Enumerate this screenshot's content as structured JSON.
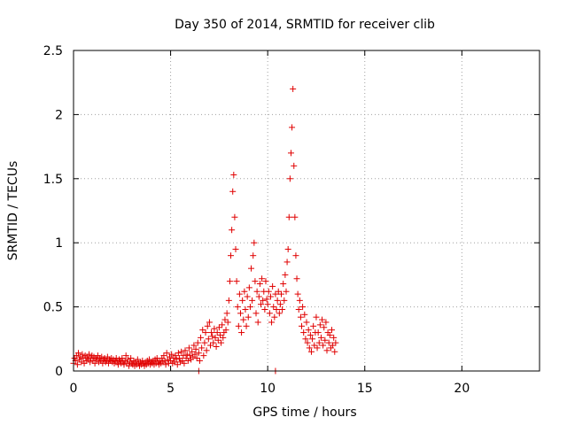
{
  "chart_data": {
    "type": "scatter",
    "title": "Day 350 of 2014, SRMTID for receiver clib",
    "xlabel": "GPS time / hours",
    "ylabel": "SRMTID / TECUs",
    "xlim": [
      0,
      24
    ],
    "ylim": [
      0,
      2.5
    ],
    "xticks": [
      0,
      5,
      10,
      15,
      20
    ],
    "xtick_labels": [
      "0",
      "5",
      "10",
      "15",
      "20"
    ],
    "yticks": [
      0,
      0.5,
      1,
      1.5,
      2,
      2.5
    ],
    "ytick_labels": [
      "0",
      "0.5",
      "1",
      "1.5",
      "2",
      "2.5"
    ],
    "grid": true,
    "marker": "+",
    "series": [
      {
        "name": "SRMTID",
        "color": "#e00000",
        "points": [
          [
            0.0,
            0.06
          ],
          [
            0.05,
            0.1
          ],
          [
            0.1,
            0.08
          ],
          [
            0.15,
            0.12
          ],
          [
            0.2,
            0.05
          ],
          [
            0.25,
            0.14
          ],
          [
            0.3,
            0.09
          ],
          [
            0.35,
            0.11
          ],
          [
            0.4,
            0.07
          ],
          [
            0.45,
            0.13
          ],
          [
            0.5,
            0.1
          ],
          [
            0.55,
            0.06
          ],
          [
            0.6,
            0.12
          ],
          [
            0.65,
            0.08
          ],
          [
            0.7,
            0.11
          ],
          [
            0.75,
            0.09
          ],
          [
            0.8,
            0.13
          ],
          [
            0.85,
            0.07
          ],
          [
            0.9,
            0.1
          ],
          [
            0.95,
            0.12
          ],
          [
            1.0,
            0.08
          ],
          [
            1.05,
            0.11
          ],
          [
            1.1,
            0.06
          ],
          [
            1.15,
            0.1
          ],
          [
            1.2,
            0.09
          ],
          [
            1.25,
            0.12
          ],
          [
            1.3,
            0.07
          ],
          [
            1.35,
            0.1
          ],
          [
            1.4,
            0.08
          ],
          [
            1.45,
            0.11
          ],
          [
            1.5,
            0.06
          ],
          [
            1.55,
            0.09
          ],
          [
            1.6,
            0.1
          ],
          [
            1.65,
            0.07
          ],
          [
            1.7,
            0.08
          ],
          [
            1.75,
            0.11
          ],
          [
            1.8,
            0.06
          ],
          [
            1.85,
            0.09
          ],
          [
            1.9,
            0.08
          ],
          [
            1.95,
            0.1
          ],
          [
            2.0,
            0.07
          ],
          [
            2.05,
            0.09
          ],
          [
            2.1,
            0.06
          ],
          [
            2.15,
            0.08
          ],
          [
            2.2,
            0.1
          ],
          [
            2.25,
            0.07
          ],
          [
            2.3,
            0.05
          ],
          [
            2.35,
            0.09
          ],
          [
            2.4,
            0.08
          ],
          [
            2.45,
            0.06
          ],
          [
            2.5,
            0.1
          ],
          [
            2.55,
            0.07
          ],
          [
            2.6,
            0.05
          ],
          [
            2.65,
            0.08
          ],
          [
            2.7,
            0.12
          ],
          [
            2.75,
            0.06
          ],
          [
            2.8,
            0.09
          ],
          [
            2.85,
            0.04
          ],
          [
            2.9,
            0.07
          ],
          [
            2.95,
            0.1
          ],
          [
            3.0,
            0.06
          ],
          [
            3.05,
            0.05
          ],
          [
            3.1,
            0.08
          ],
          [
            3.15,
            0.04
          ],
          [
            3.2,
            0.07
          ],
          [
            3.25,
            0.05
          ],
          [
            3.3,
            0.09
          ],
          [
            3.35,
            0.06
          ],
          [
            3.4,
            0.04
          ],
          [
            3.45,
            0.07
          ],
          [
            3.5,
            0.05
          ],
          [
            3.55,
            0.08
          ],
          [
            3.6,
            0.06
          ],
          [
            3.65,
            0.04
          ],
          [
            3.7,
            0.07
          ],
          [
            3.75,
            0.05
          ],
          [
            3.8,
            0.08
          ],
          [
            3.85,
            0.06
          ],
          [
            3.9,
            0.09
          ],
          [
            3.95,
            0.05
          ],
          [
            4.0,
            0.07
          ],
          [
            4.05,
            0.06
          ],
          [
            4.1,
            0.08
          ],
          [
            4.15,
            0.05
          ],
          [
            4.2,
            0.09
          ],
          [
            4.25,
            0.06
          ],
          [
            4.3,
            0.1
          ],
          [
            4.35,
            0.07
          ],
          [
            4.4,
            0.05
          ],
          [
            4.45,
            0.08
          ],
          [
            4.5,
            0.06
          ],
          [
            4.55,
            0.1
          ],
          [
            4.6,
            0.07
          ],
          [
            4.65,
            0.12
          ],
          [
            4.7,
            0.08
          ],
          [
            4.75,
            0.05
          ],
          [
            4.8,
            0.14
          ],
          [
            4.85,
            0.09
          ],
          [
            4.9,
            0.06
          ],
          [
            4.95,
            0.11
          ],
          [
            5.0,
            0.08
          ],
          [
            5.05,
            0.13
          ],
          [
            5.1,
            0.06
          ],
          [
            5.15,
            0.1
          ],
          [
            5.2,
            0.07
          ],
          [
            5.25,
            0.12
          ],
          [
            5.3,
            0.09
          ],
          [
            5.35,
            0.05
          ],
          [
            5.4,
            0.14
          ],
          [
            5.45,
            0.1
          ],
          [
            5.5,
            0.07
          ],
          [
            5.55,
            0.15
          ],
          [
            5.6,
            0.08
          ],
          [
            5.65,
            0.12
          ],
          [
            5.7,
            0.06
          ],
          [
            5.75,
            0.16
          ],
          [
            5.8,
            0.1
          ],
          [
            5.85,
            0.13
          ],
          [
            5.9,
            0.08
          ],
          [
            5.95,
            0.18
          ],
          [
            6.0,
            0.12
          ],
          [
            6.05,
            0.09
          ],
          [
            6.1,
            0.15
          ],
          [
            6.15,
            0.11
          ],
          [
            6.2,
            0.2
          ],
          [
            6.25,
            0.13
          ],
          [
            6.3,
            0.17
          ],
          [
            6.35,
            0.1
          ],
          [
            6.4,
            0.22
          ],
          [
            6.45,
            0.14
          ],
          [
            6.5,
            0.08
          ],
          [
            6.55,
            0.26
          ],
          [
            6.6,
            0.18
          ],
          [
            6.65,
            0.32
          ],
          [
            6.7,
            0.12
          ],
          [
            6.75,
            0.22
          ],
          [
            6.8,
            0.3
          ],
          [
            6.85,
            0.16
          ],
          [
            6.9,
            0.35
          ],
          [
            6.95,
            0.25
          ],
          [
            7.0,
            0.38
          ],
          [
            7.05,
            0.2
          ],
          [
            7.1,
            0.3
          ],
          [
            7.15,
            0.27
          ],
          [
            7.2,
            0.22
          ],
          [
            7.25,
            0.33
          ],
          [
            7.3,
            0.26
          ],
          [
            7.35,
            0.19
          ],
          [
            7.4,
            0.3
          ],
          [
            7.45,
            0.24
          ],
          [
            7.5,
            0.34
          ],
          [
            7.55,
            0.28
          ],
          [
            7.6,
            0.22
          ],
          [
            7.65,
            0.36
          ],
          [
            7.7,
            0.26
          ],
          [
            7.75,
            0.3
          ],
          [
            7.8,
            0.4
          ],
          [
            7.85,
            0.32
          ],
          [
            7.9,
            0.45
          ],
          [
            7.95,
            0.38
          ],
          [
            8.0,
            0.55
          ],
          [
            8.05,
            0.7
          ],
          [
            8.1,
            0.9
          ],
          [
            8.15,
            1.1
          ],
          [
            8.2,
            1.4
          ],
          [
            8.25,
            1.53
          ],
          [
            8.3,
            1.2
          ],
          [
            8.35,
            0.95
          ],
          [
            8.4,
            0.7
          ],
          [
            8.45,
            0.5
          ],
          [
            8.5,
            0.35
          ],
          [
            8.55,
            0.6
          ],
          [
            8.6,
            0.45
          ],
          [
            8.65,
            0.3
          ],
          [
            8.7,
            0.55
          ],
          [
            8.75,
            0.4
          ],
          [
            8.8,
            0.62
          ],
          [
            8.85,
            0.48
          ],
          [
            8.9,
            0.35
          ],
          [
            8.95,
            0.58
          ],
          [
            9.0,
            0.42
          ],
          [
            9.05,
            0.65
          ],
          [
            9.1,
            0.5
          ],
          [
            9.15,
            0.8
          ],
          [
            9.2,
            0.55
          ],
          [
            9.25,
            0.9
          ],
          [
            9.3,
            1.0
          ],
          [
            9.35,
            0.7
          ],
          [
            9.4,
            0.45
          ],
          [
            9.45,
            0.62
          ],
          [
            9.5,
            0.38
          ],
          [
            9.55,
            0.58
          ],
          [
            9.6,
            0.68
          ],
          [
            9.65,
            0.52
          ],
          [
            9.7,
            0.72
          ],
          [
            9.75,
            0.55
          ],
          [
            9.8,
            0.62
          ],
          [
            9.85,
            0.48
          ],
          [
            9.9,
            0.7
          ],
          [
            9.95,
            0.56
          ],
          [
            10.0,
            0.52
          ],
          [
            10.05,
            0.62
          ],
          [
            10.1,
            0.45
          ],
          [
            10.15,
            0.58
          ],
          [
            10.2,
            0.38
          ],
          [
            10.25,
            0.66
          ],
          [
            10.3,
            0.5
          ],
          [
            10.35,
            0.42
          ],
          [
            10.4,
            0.6
          ],
          [
            10.45,
            0.48
          ],
          [
            10.5,
            0.55
          ],
          [
            10.55,
            0.62
          ],
          [
            10.6,
            0.45
          ],
          [
            10.65,
            0.52
          ],
          [
            10.7,
            0.6
          ],
          [
            10.75,
            0.48
          ],
          [
            10.8,
            0.68
          ],
          [
            10.85,
            0.55
          ],
          [
            10.9,
            0.75
          ],
          [
            10.95,
            0.62
          ],
          [
            11.0,
            0.85
          ],
          [
            11.05,
            0.95
          ],
          [
            11.1,
            1.2
          ],
          [
            11.15,
            1.5
          ],
          [
            11.2,
            1.7
          ],
          [
            11.25,
            1.9
          ],
          [
            11.3,
            2.2
          ],
          [
            11.35,
            1.6
          ],
          [
            11.4,
            1.2
          ],
          [
            11.45,
            0.9
          ],
          [
            11.5,
            0.72
          ],
          [
            11.55,
            0.6
          ],
          [
            11.6,
            0.48
          ],
          [
            11.65,
            0.55
          ],
          [
            11.7,
            0.42
          ],
          [
            11.75,
            0.35
          ],
          [
            11.8,
            0.5
          ],
          [
            11.85,
            0.3
          ],
          [
            11.9,
            0.44
          ],
          [
            11.95,
            0.25
          ],
          [
            12.0,
            0.38
          ],
          [
            12.05,
            0.22
          ],
          [
            12.1,
            0.32
          ],
          [
            12.15,
            0.18
          ],
          [
            12.2,
            0.28
          ],
          [
            12.25,
            0.15
          ],
          [
            12.3,
            0.25
          ],
          [
            12.35,
            0.35
          ],
          [
            12.4,
            0.2
          ],
          [
            12.45,
            0.3
          ],
          [
            12.5,
            0.42
          ],
          [
            12.55,
            0.18
          ],
          [
            12.6,
            0.3
          ],
          [
            12.65,
            0.22
          ],
          [
            12.7,
            0.36
          ],
          [
            12.75,
            0.26
          ],
          [
            12.8,
            0.4
          ],
          [
            12.85,
            0.2
          ],
          [
            12.9,
            0.34
          ],
          [
            12.95,
            0.24
          ],
          [
            13.0,
            0.38
          ],
          [
            13.05,
            0.16
          ],
          [
            13.1,
            0.3
          ],
          [
            13.15,
            0.22
          ],
          [
            13.2,
            0.28
          ],
          [
            13.25,
            0.18
          ],
          [
            13.3,
            0.32
          ],
          [
            13.35,
            0.2
          ],
          [
            13.4,
            0.26
          ],
          [
            13.45,
            0.15
          ],
          [
            13.5,
            0.22
          ],
          [
            6.45,
            0.0
          ],
          [
            10.4,
            0.0
          ]
        ]
      }
    ]
  }
}
